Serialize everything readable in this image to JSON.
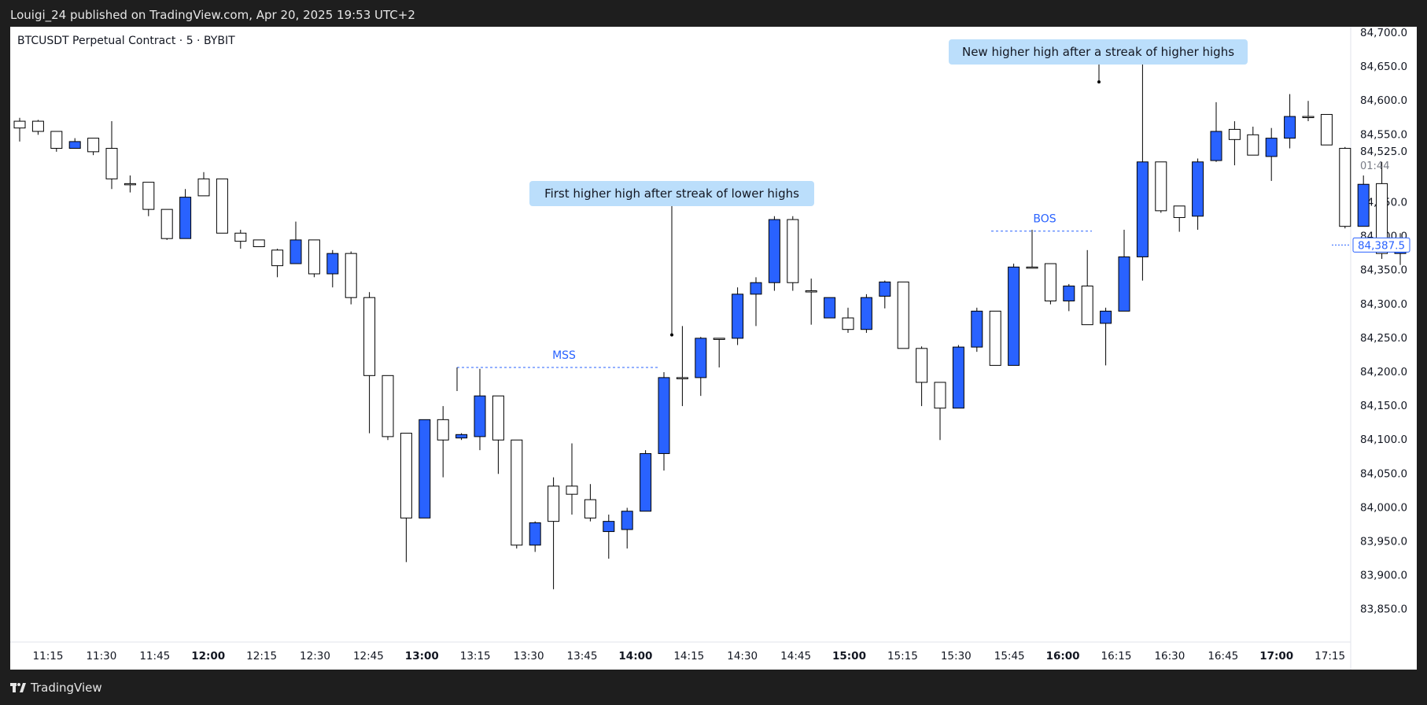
{
  "header": {
    "publisher": "Louigi_24 published on TradingView.com, Apr 20, 2025 19:53 UTC+2"
  },
  "footer": {
    "brand": "TradingView",
    "logo_icon": "tradingview-logo-icon"
  },
  "chart_data": {
    "type": "candlestick",
    "title": "BTCUSDT Perpetual Contract · 5 · BYBIT",
    "ylim": [
      83820,
      84720
    ],
    "y_ticks": [
      "84,700.0",
      "84,650.0",
      "84,600.0",
      "84,550.0",
      "84,525.0",
      "84,450.0",
      "84,400.0",
      "84,350.0",
      "84,300.0",
      "84,250.0",
      "84,200.0",
      "84,150.0",
      "84,100.0",
      "84,050.0",
      "84,000.0",
      "83,950.0",
      "83,900.0",
      "83,850.0"
    ],
    "x_ticks": [
      "11:15",
      "11:30",
      "11:45",
      "12:00",
      "12:15",
      "12:30",
      "12:45",
      "13:00",
      "13:15",
      "13:30",
      "13:45",
      "14:00",
      "14:15",
      "14:30",
      "14:45",
      "15:00",
      "15:15",
      "15:30",
      "15:45",
      "16:00",
      "16:15",
      "16:30",
      "16:45",
      "17:00",
      "17:15"
    ],
    "x_ticks_bold": [
      "12:00",
      "13:00",
      "14:00",
      "15:00",
      "16:00",
      "17:00"
    ],
    "colors": {
      "up": "#ffffff",
      "down": "#2962ff",
      "wick": "#000000",
      "annotation_text": "#2962ff",
      "callout_bg": "#bbdefb"
    },
    "candles": [
      {
        "o": 84560,
        "h": 84575,
        "l": 84540,
        "c": 84570
      },
      {
        "o": 84555,
        "h": 84572,
        "l": 84550,
        "c": 84570
      },
      {
        "o": 84530,
        "h": 84555,
        "l": 84525,
        "c": 84555
      },
      {
        "o": 84540,
        "h": 84545,
        "l": 84530,
        "c": 84530
      },
      {
        "o": 84525,
        "h": 84545,
        "l": 84520,
        "c": 84545
      },
      {
        "o": 84485,
        "h": 84570,
        "l": 84470,
        "c": 84530
      },
      {
        "o": 84478,
        "h": 84490,
        "l": 84465,
        "c": 84478
      },
      {
        "o": 84440,
        "h": 84480,
        "l": 84430,
        "c": 84480
      },
      {
        "o": 84397,
        "h": 84440,
        "l": 84395,
        "c": 84440
      },
      {
        "o": 84458,
        "h": 84470,
        "l": 84397,
        "c": 84397
      },
      {
        "o": 84460,
        "h": 84495,
        "l": 84460,
        "c": 84485
      },
      {
        "o": 84405,
        "h": 84485,
        "l": 84405,
        "c": 84485
      },
      {
        "o": 84393,
        "h": 84410,
        "l": 84382,
        "c": 84405
      },
      {
        "o": 84385,
        "h": 84395,
        "l": 84385,
        "c": 84395
      },
      {
        "o": 84357,
        "h": 84382,
        "l": 84340,
        "c": 84380
      },
      {
        "o": 84395,
        "h": 84422,
        "l": 84360,
        "c": 84360
      },
      {
        "o": 84345,
        "h": 84395,
        "l": 84340,
        "c": 84395
      },
      {
        "o": 84375,
        "h": 84380,
        "l": 84325,
        "c": 84345
      },
      {
        "o": 84310,
        "h": 84378,
        "l": 84300,
        "c": 84375
      },
      {
        "o": 84195,
        "h": 84318,
        "l": 84110,
        "c": 84310
      },
      {
        "o": 84105,
        "h": 84195,
        "l": 84100,
        "c": 84195
      },
      {
        "o": 83985,
        "h": 84110,
        "l": 83920,
        "c": 84110
      },
      {
        "o": 84130,
        "h": 84130,
        "l": 83985,
        "c": 83985
      },
      {
        "o": 84100,
        "h": 84150,
        "l": 84045,
        "c": 84130
      },
      {
        "o": 84108,
        "h": 84110,
        "l": 84100,
        "c": 84103
      },
      {
        "o": 84165,
        "h": 84205,
        "l": 84085,
        "c": 84105
      },
      {
        "o": 84100,
        "h": 84165,
        "l": 84050,
        "c": 84165
      },
      {
        "o": 83945,
        "h": 84100,
        "l": 83940,
        "c": 84100
      },
      {
        "o": 83978,
        "h": 83980,
        "l": 83935,
        "c": 83945
      },
      {
        "o": 83980,
        "h": 84045,
        "l": 83880,
        "c": 84032
      },
      {
        "o": 84020,
        "h": 84095,
        "l": 83990,
        "c": 84032
      },
      {
        "o": 83985,
        "h": 84035,
        "l": 83980,
        "c": 84012
      },
      {
        "o": 83980,
        "h": 83990,
        "l": 83925,
        "c": 83965
      },
      {
        "o": 83995,
        "h": 84000,
        "l": 83940,
        "c": 83968
      },
      {
        "o": 84080,
        "h": 84085,
        "l": 83995,
        "c": 83995
      },
      {
        "o": 84192,
        "h": 84200,
        "l": 84055,
        "c": 84080
      },
      {
        "o": 84192,
        "h": 84268,
        "l": 84150,
        "c": 84192
      },
      {
        "o": 84250,
        "h": 84252,
        "l": 84165,
        "c": 84192
      },
      {
        "o": 84250,
        "h": 84250,
        "l": 84207,
        "c": 84250
      },
      {
        "o": 84315,
        "h": 84325,
        "l": 84240,
        "c": 84250
      },
      {
        "o": 84332,
        "h": 84340,
        "l": 84268,
        "c": 84315
      },
      {
        "o": 84425,
        "h": 84430,
        "l": 84320,
        "c": 84332
      },
      {
        "o": 84332,
        "h": 84430,
        "l": 84320,
        "c": 84425
      },
      {
        "o": 84320,
        "h": 84338,
        "l": 84270,
        "c": 84320
      },
      {
        "o": 84310,
        "h": 84310,
        "l": 84280,
        "c": 84280
      },
      {
        "o": 84263,
        "h": 84295,
        "l": 84258,
        "c": 84280
      },
      {
        "o": 84310,
        "h": 84315,
        "l": 84258,
        "c": 84263
      },
      {
        "o": 84333,
        "h": 84335,
        "l": 84294,
        "c": 84312
      },
      {
        "o": 84235,
        "h": 84333,
        "l": 84235,
        "c": 84333
      },
      {
        "o": 84185,
        "h": 84238,
        "l": 84150,
        "c": 84235
      },
      {
        "o": 84147,
        "h": 84185,
        "l": 84100,
        "c": 84185
      },
      {
        "o": 84237,
        "h": 84240,
        "l": 84147,
        "c": 84147
      },
      {
        "o": 84290,
        "h": 84295,
        "l": 84230,
        "c": 84237
      },
      {
        "o": 84210,
        "h": 84290,
        "l": 84210,
        "c": 84290
      },
      {
        "o": 84355,
        "h": 84360,
        "l": 84210,
        "c": 84210
      },
      {
        "o": 84355,
        "h": 84410,
        "l": 84355,
        "c": 84355
      },
      {
        "o": 84305,
        "h": 84360,
        "l": 84300,
        "c": 84360
      },
      {
        "o": 84327,
        "h": 84330,
        "l": 84290,
        "c": 84305
      },
      {
        "o": 84270,
        "h": 84380,
        "l": 84270,
        "c": 84327
      },
      {
        "o": 84290,
        "h": 84295,
        "l": 84210,
        "c": 84272
      },
      {
        "o": 84370,
        "h": 84410,
        "l": 84290,
        "c": 84290
      },
      {
        "o": 84510,
        "h": 84665,
        "l": 84335,
        "c": 84370
      },
      {
        "o": 84438,
        "h": 84510,
        "l": 84435,
        "c": 84510
      },
      {
        "o": 84428,
        "h": 84445,
        "l": 84407,
        "c": 84445
      },
      {
        "o": 84510,
        "h": 84515,
        "l": 84410,
        "c": 84430
      },
      {
        "o": 84555,
        "h": 84598,
        "l": 84510,
        "c": 84512
      },
      {
        "o": 84543,
        "h": 84570,
        "l": 84505,
        "c": 84558
      },
      {
        "o": 84520,
        "h": 84562,
        "l": 84520,
        "c": 84550
      },
      {
        "o": 84545,
        "h": 84560,
        "l": 84482,
        "c": 84518
      },
      {
        "o": 84577,
        "h": 84610,
        "l": 84530,
        "c": 84545
      },
      {
        "o": 84577,
        "h": 84600,
        "l": 84570,
        "c": 84577
      },
      {
        "o": 84535,
        "h": 84580,
        "l": 84535,
        "c": 84580
      },
      {
        "o": 84415,
        "h": 84532,
        "l": 84412,
        "c": 84530
      },
      {
        "o": 84477,
        "h": 84490,
        "l": 84415,
        "c": 84415
      },
      {
        "o": 84375,
        "h": 84510,
        "l": 84367,
        "c": 84478
      },
      {
        "o": 84388,
        "h": 84405,
        "l": 84358,
        "c": 84375
      }
    ],
    "annotations": [
      {
        "type": "callout",
        "text": "First higher high after streak of lower highs"
      },
      {
        "type": "callout",
        "text": "New higher high after a streak of higher highs"
      },
      {
        "type": "level",
        "text": "MSS",
        "price": 84207
      },
      {
        "type": "level",
        "text": "BOS",
        "price": 84408
      }
    ],
    "price_labels": {
      "last_price": "84,387.5",
      "countdown": "01:44"
    }
  }
}
